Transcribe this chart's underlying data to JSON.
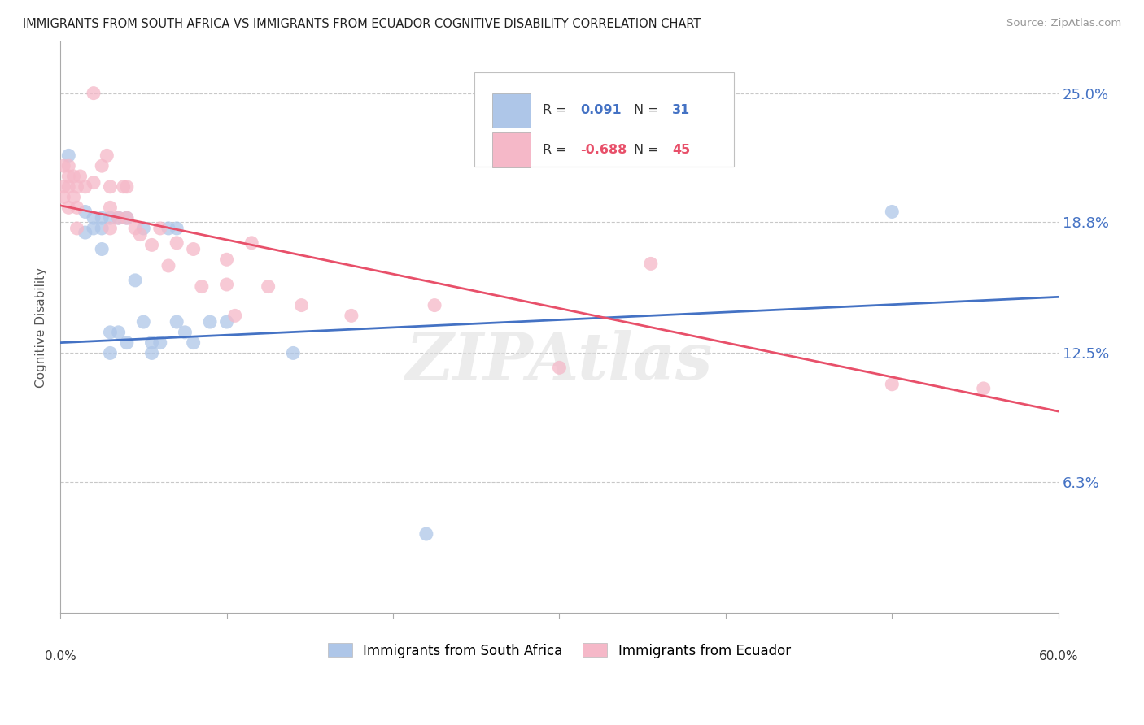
{
  "title": "IMMIGRANTS FROM SOUTH AFRICA VS IMMIGRANTS FROM ECUADOR COGNITIVE DISABILITY CORRELATION CHART",
  "source": "Source: ZipAtlas.com",
  "ylabel": "Cognitive Disability",
  "ytick_labels": [
    "25.0%",
    "18.8%",
    "12.5%",
    "6.3%"
  ],
  "ytick_values": [
    0.25,
    0.188,
    0.125,
    0.063
  ],
  "xlim": [
    0.0,
    0.6
  ],
  "ylim": [
    0.0,
    0.275
  ],
  "south_africa_color": "#aec6e8",
  "ecuador_color": "#f5b8c8",
  "south_africa_line_color": "#4472c4",
  "ecuador_line_color": "#e8506a",
  "background_color": "#ffffff",
  "grid_color": "#c8c8c8",
  "sa_line": [
    0.0,
    0.13,
    0.6,
    0.152
  ],
  "ec_line": [
    0.0,
    0.196,
    0.6,
    0.097
  ],
  "sa_points": [
    [
      0.005,
      0.22
    ],
    [
      0.015,
      0.193
    ],
    [
      0.015,
      0.183
    ],
    [
      0.02,
      0.19
    ],
    [
      0.02,
      0.185
    ],
    [
      0.025,
      0.19
    ],
    [
      0.025,
      0.185
    ],
    [
      0.025,
      0.175
    ],
    [
      0.03,
      0.19
    ],
    [
      0.03,
      0.135
    ],
    [
      0.03,
      0.125
    ],
    [
      0.035,
      0.19
    ],
    [
      0.035,
      0.135
    ],
    [
      0.04,
      0.19
    ],
    [
      0.04,
      0.13
    ],
    [
      0.045,
      0.16
    ],
    [
      0.05,
      0.185
    ],
    [
      0.05,
      0.14
    ],
    [
      0.055,
      0.13
    ],
    [
      0.055,
      0.125
    ],
    [
      0.06,
      0.13
    ],
    [
      0.065,
      0.185
    ],
    [
      0.07,
      0.185
    ],
    [
      0.07,
      0.14
    ],
    [
      0.075,
      0.135
    ],
    [
      0.08,
      0.13
    ],
    [
      0.09,
      0.14
    ],
    [
      0.1,
      0.14
    ],
    [
      0.14,
      0.125
    ],
    [
      0.22,
      0.038
    ],
    [
      0.5,
      0.193
    ]
  ],
  "ec_points": [
    [
      0.002,
      0.215
    ],
    [
      0.002,
      0.205
    ],
    [
      0.002,
      0.2
    ],
    [
      0.005,
      0.215
    ],
    [
      0.005,
      0.21
    ],
    [
      0.005,
      0.205
    ],
    [
      0.005,
      0.195
    ],
    [
      0.008,
      0.21
    ],
    [
      0.008,
      0.2
    ],
    [
      0.01,
      0.205
    ],
    [
      0.01,
      0.195
    ],
    [
      0.01,
      0.185
    ],
    [
      0.012,
      0.21
    ],
    [
      0.015,
      0.205
    ],
    [
      0.02,
      0.25
    ],
    [
      0.02,
      0.207
    ],
    [
      0.025,
      0.215
    ],
    [
      0.028,
      0.22
    ],
    [
      0.03,
      0.205
    ],
    [
      0.03,
      0.195
    ],
    [
      0.03,
      0.185
    ],
    [
      0.035,
      0.19
    ],
    [
      0.038,
      0.205
    ],
    [
      0.04,
      0.205
    ],
    [
      0.04,
      0.19
    ],
    [
      0.045,
      0.185
    ],
    [
      0.048,
      0.182
    ],
    [
      0.055,
      0.177
    ],
    [
      0.06,
      0.185
    ],
    [
      0.065,
      0.167
    ],
    [
      0.07,
      0.178
    ],
    [
      0.08,
      0.175
    ],
    [
      0.085,
      0.157
    ],
    [
      0.1,
      0.17
    ],
    [
      0.1,
      0.158
    ],
    [
      0.105,
      0.143
    ],
    [
      0.115,
      0.178
    ],
    [
      0.125,
      0.157
    ],
    [
      0.145,
      0.148
    ],
    [
      0.175,
      0.143
    ],
    [
      0.225,
      0.148
    ],
    [
      0.3,
      0.118
    ],
    [
      0.355,
      0.168
    ],
    [
      0.5,
      0.11
    ],
    [
      0.555,
      0.108
    ]
  ]
}
